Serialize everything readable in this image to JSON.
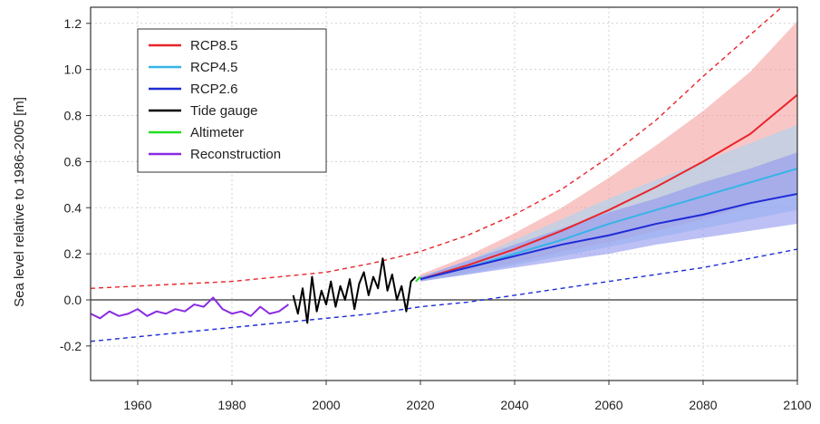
{
  "chart_data": {
    "type": "line",
    "ylabel": "Sea level relative to 1986-2005 [m]",
    "xlim": [
      1950,
      2100
    ],
    "ylim": [
      -0.35,
      1.27
    ],
    "x_ticks": [
      1960,
      1980,
      2000,
      2020,
      2040,
      2060,
      2080,
      2100
    ],
    "y_ticks": [
      -0.2,
      0.0,
      0.2,
      0.4,
      0.6,
      0.8,
      1.0,
      1.2
    ],
    "grid": true,
    "legend_position": "top-left",
    "legend": [
      {
        "label": "RCP8.5",
        "color": "#e8252b"
      },
      {
        "label": "RCP4.5",
        "color": "#36b4e6"
      },
      {
        "label": "RCP2.6",
        "color": "#1f2bd6"
      },
      {
        "label": "Tide gauge",
        "color": "#000000"
      },
      {
        "label": "Altimeter",
        "color": "#22dd22"
      },
      {
        "label": "Reconstruction",
        "color": "#8a2be2"
      }
    ],
    "series": [
      {
        "name": "RCP8.5",
        "color": "#e8252b",
        "x": [
          2020,
          2030,
          2040,
          2050,
          2060,
          2070,
          2080,
          2090,
          2100
        ],
        "median": [
          0.09,
          0.15,
          0.22,
          0.3,
          0.39,
          0.49,
          0.6,
          0.72,
          0.89
        ],
        "low": [
          0.08,
          0.12,
          0.16,
          0.21,
          0.25,
          0.3,
          0.35,
          0.41,
          0.47
        ],
        "high": [
          0.11,
          0.19,
          0.29,
          0.4,
          0.53,
          0.67,
          0.82,
          0.99,
          1.21
        ],
        "fill": "#f5a0a0"
      },
      {
        "name": "RCP4.5",
        "color": "#36b4e6",
        "x": [
          2020,
          2030,
          2040,
          2050,
          2060,
          2070,
          2080,
          2090,
          2100
        ],
        "median": [
          0.09,
          0.14,
          0.2,
          0.26,
          0.33,
          0.39,
          0.45,
          0.51,
          0.57
        ],
        "low": [
          0.08,
          0.11,
          0.15,
          0.19,
          0.23,
          0.27,
          0.31,
          0.35,
          0.39
        ],
        "high": [
          0.1,
          0.17,
          0.26,
          0.35,
          0.44,
          0.52,
          0.6,
          0.68,
          0.76
        ],
        "fill": "#a5d6f2"
      },
      {
        "name": "RCP2.6",
        "color": "#1f2bd6",
        "x": [
          2020,
          2030,
          2040,
          2050,
          2060,
          2070,
          2080,
          2090,
          2100
        ],
        "median": [
          0.09,
          0.14,
          0.19,
          0.24,
          0.28,
          0.33,
          0.37,
          0.42,
          0.46
        ],
        "low": [
          0.08,
          0.11,
          0.14,
          0.17,
          0.2,
          0.24,
          0.27,
          0.3,
          0.33
        ],
        "high": [
          0.1,
          0.17,
          0.24,
          0.31,
          0.38,
          0.44,
          0.51,
          0.57,
          0.64
        ],
        "fill": "#8f96ee"
      },
      {
        "name": "Upper bound (RCP8.5 dashed)",
        "color": "#e8252b",
        "style": "dashed",
        "x": [
          1950,
          1960,
          1970,
          1980,
          1990,
          2000,
          2010,
          2020,
          2030,
          2040,
          2050,
          2060,
          2070,
          2080,
          2090,
          2100
        ],
        "values": [
          0.05,
          0.06,
          0.07,
          0.08,
          0.1,
          0.12,
          0.16,
          0.21,
          0.28,
          0.37,
          0.48,
          0.62,
          0.78,
          0.97,
          1.15,
          1.33
        ]
      },
      {
        "name": "Lower bound (RCP2.6 dashed)",
        "color": "#1f2bd6",
        "style": "dashed",
        "x": [
          1950,
          1960,
          1970,
          1980,
          1990,
          2000,
          2010,
          2020,
          2030,
          2040,
          2050,
          2060,
          2070,
          2080,
          2090,
          2100
        ],
        "values": [
          -0.18,
          -0.16,
          -0.14,
          -0.12,
          -0.1,
          -0.08,
          -0.06,
          -0.03,
          -0.01,
          0.02,
          0.05,
          0.08,
          0.11,
          0.14,
          0.18,
          0.22
        ]
      },
      {
        "name": "Reconstruction",
        "color": "#8a2be2",
        "x": [
          1950,
          1952,
          1954,
          1956,
          1958,
          1960,
          1962,
          1964,
          1966,
          1968,
          1970,
          1972,
          1974,
          1976,
          1978,
          1980,
          1982,
          1984,
          1986,
          1988,
          1990,
          1992
        ],
        "values": [
          -0.06,
          -0.08,
          -0.05,
          -0.07,
          -0.06,
          -0.04,
          -0.07,
          -0.05,
          -0.06,
          -0.04,
          -0.05,
          -0.02,
          -0.03,
          0.01,
          -0.04,
          -0.06,
          -0.05,
          -0.07,
          -0.03,
          -0.06,
          -0.05,
          -0.02
        ]
      },
      {
        "name": "Tide gauge",
        "color": "#000000",
        "x": [
          1993,
          1994,
          1995,
          1996,
          1997,
          1998,
          1999,
          2000,
          2001,
          2002,
          2003,
          2004,
          2005,
          2006,
          2007,
          2008,
          2009,
          2010,
          2011,
          2012,
          2013,
          2014,
          2015,
          2016,
          2017,
          2018,
          2019
        ],
        "values": [
          0.02,
          -0.06,
          0.05,
          -0.1,
          0.1,
          -0.05,
          0.04,
          -0.02,
          0.08,
          -0.03,
          0.06,
          0.0,
          0.09,
          -0.04,
          0.07,
          0.12,
          0.02,
          0.1,
          0.05,
          0.18,
          0.04,
          0.11,
          0.0,
          0.06,
          -0.05,
          0.08,
          0.1
        ]
      },
      {
        "name": "Altimeter",
        "color": "#22dd22",
        "x": [
          2019.0,
          2019.5,
          2020.0
        ],
        "values": [
          0.08,
          0.09,
          0.1
        ]
      }
    ]
  }
}
